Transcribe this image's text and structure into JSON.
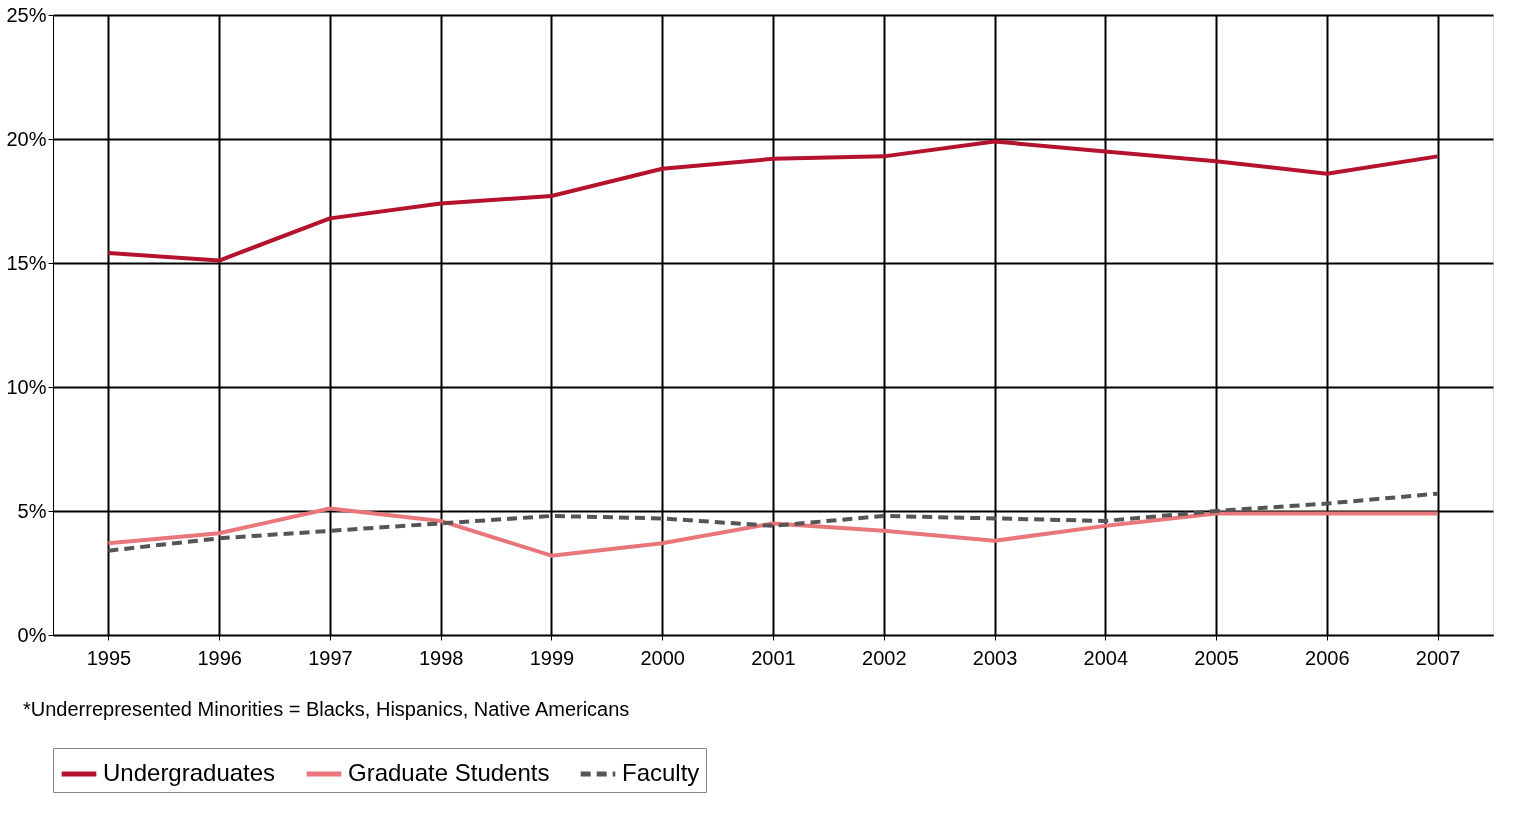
{
  "chart_data": {
    "type": "line",
    "categories": [
      "1995",
      "1996",
      "1997",
      "1998",
      "1999",
      "2000",
      "2001",
      "2002",
      "2003",
      "2004",
      "2005",
      "2006",
      "2007"
    ],
    "series": [
      {
        "name": "Undergraduates",
        "color": "#b5122e",
        "line_style": "solid",
        "values": [
          15.4,
          15.1,
          16.8,
          17.4,
          17.7,
          18.8,
          19.2,
          19.3,
          19.9,
          19.5,
          19.1,
          18.6,
          19.3
        ]
      },
      {
        "name": "Graduate Students",
        "color": "#e8767a",
        "line_style": "solid",
        "values": [
          3.7,
          4.1,
          5.1,
          4.6,
          3.2,
          3.7,
          4.5,
          4.2,
          3.8,
          4.4,
          4.9,
          4.9,
          4.9
        ]
      },
      {
        "name": "Faculty",
        "color": "#555555",
        "line_style": "dashed",
        "values": [
          3.4,
          3.9,
          4.2,
          4.5,
          4.8,
          4.7,
          4.4,
          4.8,
          4.7,
          4.6,
          5.0,
          5.3,
          5.7
        ]
      }
    ],
    "ylim": [
      0,
      25
    ],
    "yticks": [
      {
        "value": 0,
        "label": "0%"
      },
      {
        "value": 5,
        "label": "5%"
      },
      {
        "value": 10,
        "label": "10%"
      },
      {
        "value": 15,
        "label": "15%"
      },
      {
        "value": 20,
        "label": "20%"
      },
      {
        "value": 25,
        "label": "25%"
      }
    ],
    "grid": true,
    "legend": "bottom",
    "annotations": [
      "*Underrepresented Minorities = Blacks, Hispanics, Native Americans"
    ]
  }
}
